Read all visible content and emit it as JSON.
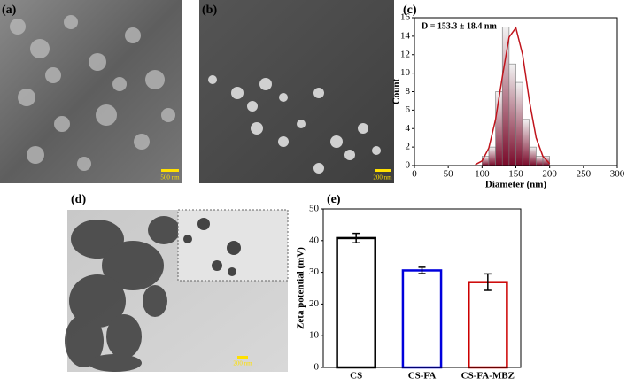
{
  "panels": {
    "a": {
      "label": "(a)",
      "scale": "500 nm"
    },
    "b": {
      "label": "(b)",
      "scale": "200 nm"
    },
    "c": {
      "label": "(c)"
    },
    "d": {
      "label": "(d)",
      "scale": "200 nm"
    },
    "e": {
      "label": "(e)"
    }
  },
  "chart_data": [
    {
      "type": "histogram",
      "annotation": "D = 153.3 ± 18.4 nm",
      "x_label": "Diameter (nm)",
      "y_label": "Count",
      "bins": [
        100,
        110,
        120,
        130,
        140,
        150,
        160,
        170,
        180,
        190,
        200
      ],
      "values": [
        1,
        2,
        8,
        15,
        11,
        9,
        5,
        2,
        1,
        1
      ],
      "color": "#8b1a3a",
      "fit": {
        "x": [
          90,
          100,
          110,
          120,
          130,
          140,
          150,
          160,
          170,
          180,
          190,
          200
        ],
        "values": [
          0.1,
          0.5,
          1.9,
          5.0,
          9.6,
          13.9,
          14.9,
          12.0,
          7.0,
          3.0,
          1.0,
          0.2
        ],
        "color": "#c0141c"
      },
      "xlim": [
        0,
        300
      ],
      "xticks": [
        0,
        50,
        100,
        150,
        200,
        250,
        300
      ],
      "ylim": [
        0,
        16
      ],
      "yticks": [
        0,
        2,
        4,
        6,
        8,
        10,
        12,
        14,
        16
      ]
    },
    {
      "type": "bar",
      "y_label": "Zeta potential (mV)",
      "categories": [
        "CS",
        "CS-FA",
        "CS-FA-MBZ"
      ],
      "values": [
        40.8,
        30.6,
        26.9
      ],
      "errors": [
        1.5,
        1.0,
        2.6
      ],
      "colors": [
        "#000000",
        "#0000dd",
        "#cc0000"
      ],
      "ylim": [
        0,
        50
      ],
      "yticks": [
        0,
        10,
        20,
        30,
        40,
        50
      ]
    }
  ]
}
